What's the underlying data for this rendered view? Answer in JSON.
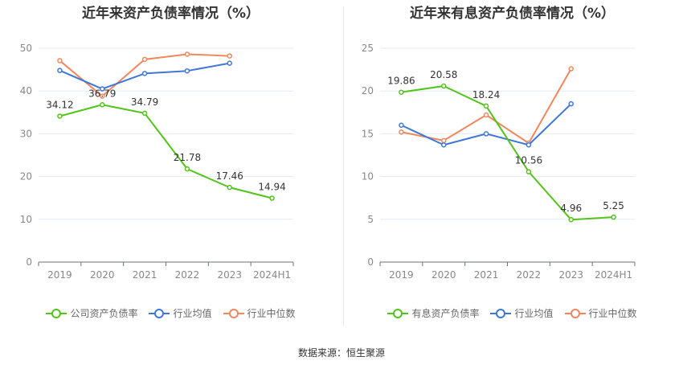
{
  "chart_data": [
    {
      "type": "line",
      "title": "近年来资产负债率情况（%）",
      "categories": [
        "2019",
        "2020",
        "2021",
        "2022",
        "2023",
        "2024H1"
      ],
      "ylim": [
        0,
        50
      ],
      "yticks": [
        0,
        10,
        20,
        30,
        40,
        50
      ],
      "grid": true,
      "legend_position": "bottom",
      "series": [
        {
          "name": "公司资产负债率",
          "color": "#52c41a",
          "values": [
            34.12,
            36.79,
            34.79,
            21.78,
            17.46,
            14.94
          ],
          "labels": [
            "34.12",
            "36.79",
            "34.79",
            "21.78",
            "17.46",
            "14.94"
          ]
        },
        {
          "name": "行业均值",
          "color": "#3f77d8",
          "values": [
            44.8,
            40.5,
            44.1,
            44.7,
            46.5,
            null
          ]
        },
        {
          "name": "行业中位数",
          "color": "#f0875d",
          "values": [
            47.1,
            38.8,
            47.4,
            48.6,
            48.2,
            null
          ]
        }
      ]
    },
    {
      "type": "line",
      "title": "近年来有息资产负债率情况（%）",
      "categories": [
        "2019",
        "2020",
        "2021",
        "2022",
        "2023",
        "2024H1"
      ],
      "ylim": [
        0,
        25
      ],
      "yticks": [
        0,
        5,
        10,
        15,
        20,
        25
      ],
      "grid": true,
      "legend_position": "bottom",
      "series": [
        {
          "name": "有息资产负债率",
          "color": "#52c41a",
          "values": [
            19.86,
            20.58,
            18.24,
            10.56,
            4.96,
            5.25
          ],
          "labels": [
            "19.86",
            "20.58",
            "18.24",
            "10.56",
            "4.96",
            "5.25"
          ]
        },
        {
          "name": "行业均值",
          "color": "#3f77d8",
          "values": [
            16.0,
            13.7,
            15.0,
            13.7,
            18.5,
            null
          ]
        },
        {
          "name": "行业中位数",
          "color": "#f0875d",
          "values": [
            15.2,
            14.2,
            17.2,
            13.9,
            22.6,
            null
          ]
        }
      ]
    }
  ],
  "source": "数据来源：恒生聚源"
}
